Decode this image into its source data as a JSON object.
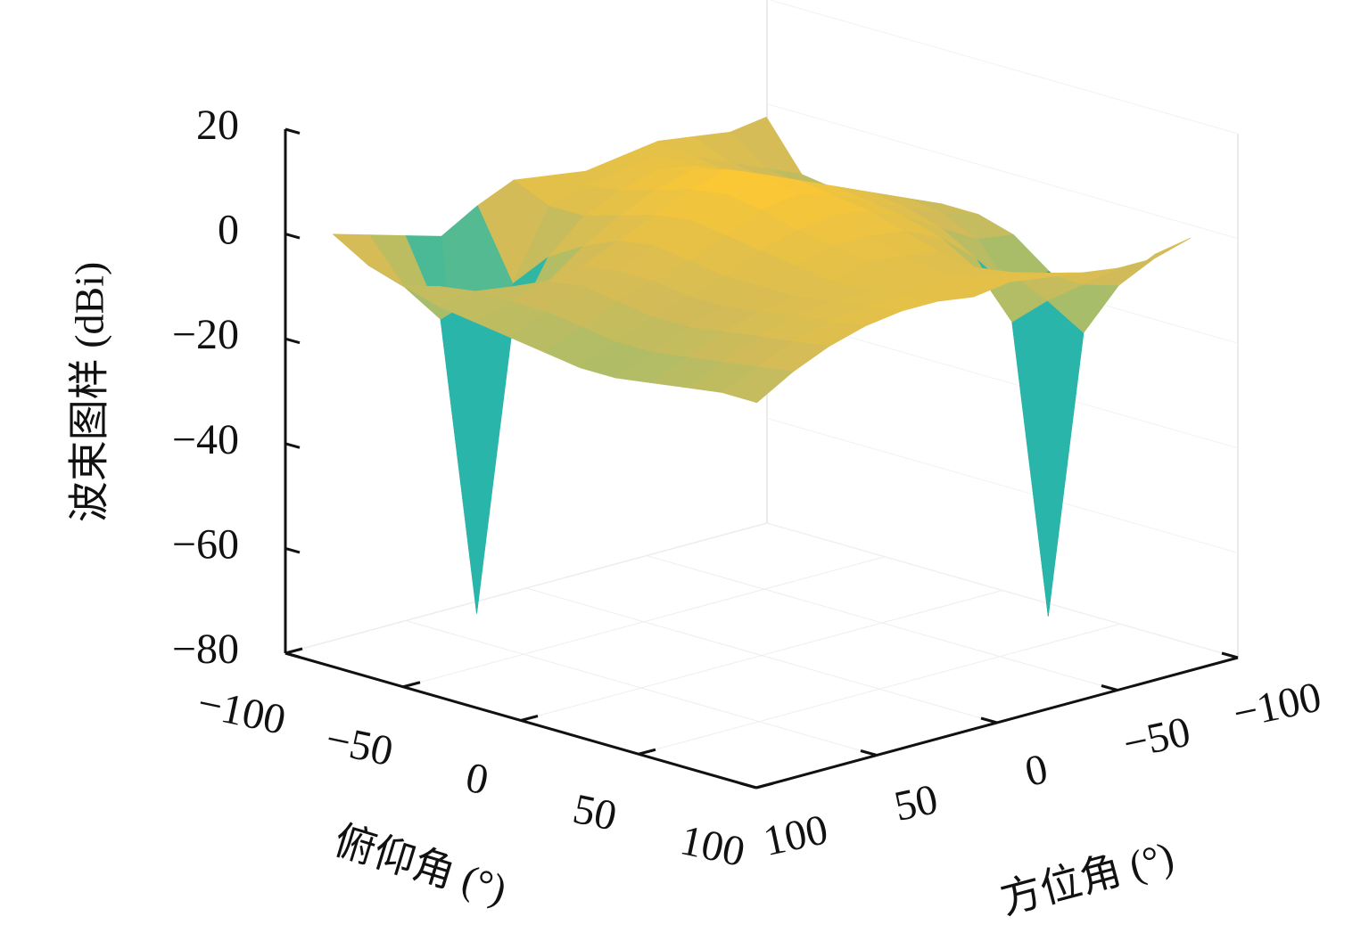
{
  "chart_data": {
    "type": "surface",
    "zlabel": "波束图样 (dBi)",
    "xlabel": "俯仰角 (°)",
    "ylabel": "方位角 (°)",
    "x": [
      -90,
      -75,
      -60,
      -45,
      -30,
      -15,
      0,
      15,
      30,
      45,
      60,
      75,
      90
    ],
    "y": [
      -90,
      -75,
      -60,
      -45,
      -30,
      -15,
      0,
      15,
      30,
      45,
      60,
      75,
      90
    ],
    "z": [
      [
        0,
        -1,
        0,
        1,
        0,
        -1,
        0,
        1,
        -2,
        -6,
        -4,
        -2,
        0
      ],
      [
        -9,
        -6,
        -3,
        0,
        2,
        1,
        0,
        -2,
        -15,
        -76,
        -18,
        -10,
        -4
      ],
      [
        -10,
        -7,
        -4,
        -1,
        2,
        3,
        1,
        -2,
        -8,
        -20,
        -12,
        -8,
        -6
      ],
      [
        -9,
        -6,
        -3,
        0,
        3,
        5,
        3,
        0,
        -4,
        -9,
        -8,
        -7,
        -8
      ],
      [
        -8,
        -5,
        -2,
        1,
        4,
        7,
        5,
        2,
        -1,
        -4,
        -5,
        -7,
        -9
      ],
      [
        -7,
        -4,
        -1,
        2,
        5,
        8,
        6,
        3,
        0,
        -3,
        -4,
        -7,
        -10
      ],
      [
        -7,
        -5,
        -2,
        1,
        4,
        6,
        5,
        2,
        -1,
        -3,
        -5,
        -8,
        -11
      ],
      [
        -9,
        -8,
        -4,
        0,
        3,
        4,
        3,
        1,
        -2,
        -4,
        -6,
        -9,
        -12
      ],
      [
        -14,
        -16,
        -8,
        -2,
        1,
        2,
        2,
        0,
        -2,
        -4,
        -6,
        -9,
        -12
      ],
      [
        -18,
        -76,
        -18,
        -6,
        -1,
        0,
        1,
        -1,
        -2,
        -3,
        -5,
        -8,
        -11
      ],
      [
        -12,
        -20,
        -12,
        -5,
        -2,
        -1,
        0,
        -1,
        -1,
        -2,
        -4,
        -7,
        -10
      ],
      [
        -5,
        -9,
        -7,
        -3,
        -1,
        0,
        0,
        0,
        0,
        -1,
        -3,
        -6,
        -9
      ],
      [
        0,
        -2,
        -2,
        -1,
        0,
        1,
        0,
        1,
        1,
        0,
        -2,
        -5,
        -9
      ]
    ],
    "xlim": [
      -100,
      100
    ],
    "xticks": [
      {
        "value": -100,
        "label": "−100"
      },
      {
        "value": -50,
        "label": "−50"
      },
      0,
      50,
      100
    ],
    "ylim": [
      -100,
      100
    ],
    "yticks": [
      {
        "value": -100,
        "label": "−100"
      },
      {
        "value": -50,
        "label": "−50"
      },
      0,
      50,
      100
    ],
    "zlim": [
      -80,
      20
    ],
    "zticks": [
      {
        "value": -80,
        "label": "−80"
      },
      {
        "value": -60,
        "label": "−60"
      },
      {
        "value": -40,
        "label": "−40"
      },
      {
        "value": -20,
        "label": "−20"
      },
      0,
      20
    ],
    "clim": [
      -80,
      20
    ],
    "colormap": [
      "#352a87",
      "#0f5cdd",
      "#1481d6",
      "#06a4ca",
      "#2eb7a4",
      "#87bf77",
      "#d1bb59",
      "#fec832",
      "#f9fb0e"
    ],
    "grid": true
  }
}
